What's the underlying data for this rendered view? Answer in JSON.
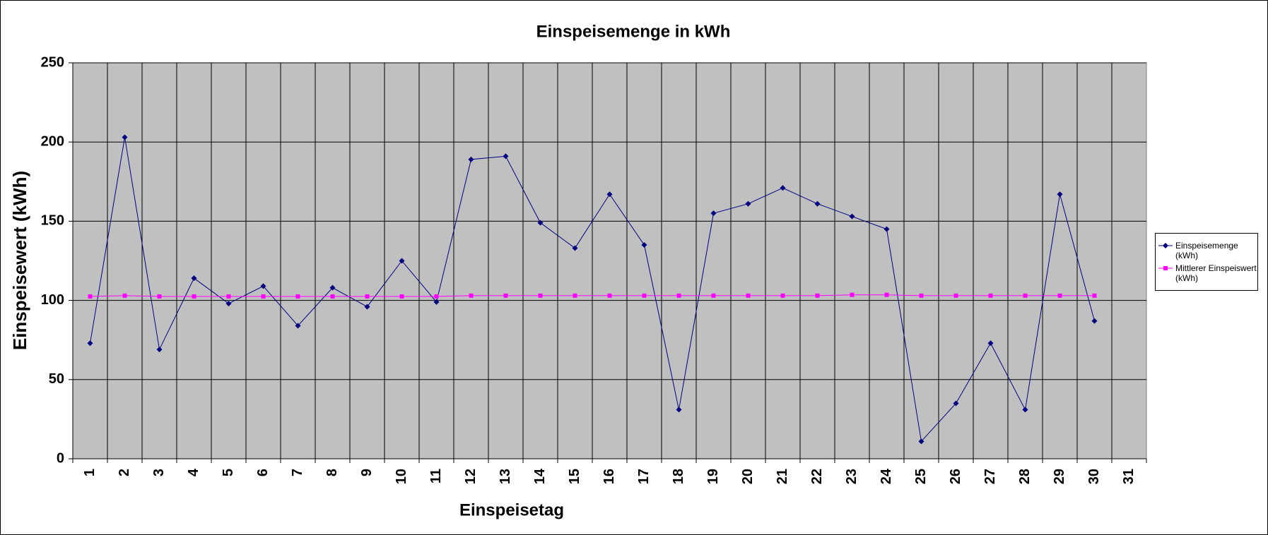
{
  "chart_data": {
    "type": "line",
    "title": "Einspeisemenge in kWh",
    "xlabel": "Einspeisetag",
    "ylabel": "Einspeisewert  (kWh)",
    "categories": [
      "1",
      "2",
      "3",
      "4",
      "5",
      "6",
      "7",
      "8",
      "9",
      "10",
      "11",
      "12",
      "13",
      "14",
      "15",
      "16",
      "17",
      "18",
      "19",
      "20",
      "21",
      "22",
      "23",
      "24",
      "25",
      "26",
      "27",
      "28",
      "29",
      "30",
      "31"
    ],
    "series": [
      {
        "name": "Einspeisemenge (kWh)",
        "color": "#000080",
        "marker": "diamond",
        "values": [
          73,
          203,
          69,
          114,
          98,
          109,
          84,
          108,
          96,
          125,
          99,
          189,
          191,
          149,
          133,
          167,
          135,
          31,
          155,
          161,
          171,
          161,
          153,
          145,
          11,
          35,
          73,
          31,
          167,
          87,
          null
        ]
      },
      {
        "name": "Mittlerer Einspeiswert (kWh)",
        "color": "#ff00ff",
        "marker": "square",
        "values": [
          102.5,
          103,
          102.5,
          102.5,
          102.5,
          102.5,
          102.5,
          102.5,
          102.5,
          102.5,
          102.5,
          103,
          103,
          103,
          103,
          103,
          103,
          103,
          103,
          103,
          103,
          103,
          103.5,
          103.5,
          103,
          103,
          103,
          103,
          103,
          103,
          null
        ]
      }
    ],
    "ylim": [
      0,
      250
    ],
    "yticks": [
      0,
      50,
      100,
      150,
      200,
      250
    ],
    "grid": true,
    "legend": "right",
    "plot_background": "#c0c0c0"
  }
}
